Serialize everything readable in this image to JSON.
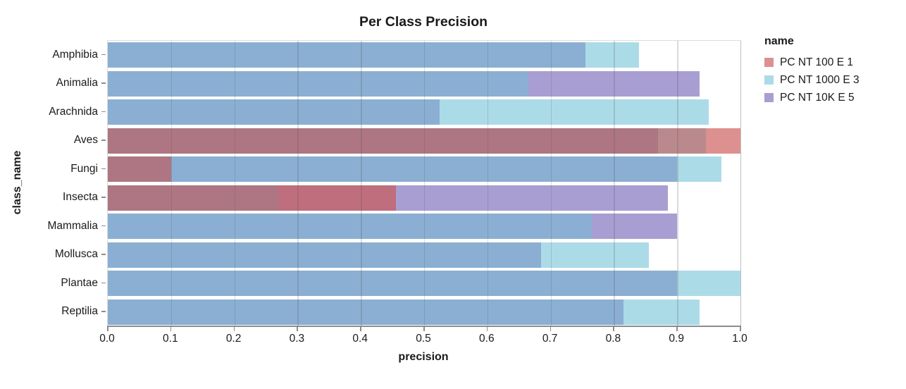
{
  "legend": {
    "title": "name"
  },
  "chart_data": {
    "type": "bar",
    "orientation": "horizontal",
    "title": "Per Class Precision",
    "xlabel": "precision",
    "ylabel": "class_name",
    "xlim": [
      0.0,
      1.0
    ],
    "x_ticks": [
      "0.0",
      "0.1",
      "0.2",
      "0.3",
      "0.4",
      "0.5",
      "0.6",
      "0.7",
      "0.8",
      "0.9",
      "1.0"
    ],
    "grid": true,
    "legend_position": "right",
    "render_style": "layered-transparent-bars",
    "categories": [
      "Amphibia",
      "Animalia",
      "Arachnida",
      "Aves",
      "Fungi",
      "Insecta",
      "Mammalia",
      "Mollusca",
      "Plantae",
      "Reptilia"
    ],
    "series": [
      {
        "id": "s100",
        "name": "PC NT 100 E 1",
        "color": "#DD9090",
        "values": [
          0.0,
          0.0,
          0.0,
          1.0,
          0.1,
          0.455,
          0.0,
          0.0,
          0.0,
          0.0
        ]
      },
      {
        "id": "s1000",
        "name": "PC NT 1000 E 3",
        "color": "#ACDBE8",
        "values": [
          0.84,
          0.665,
          0.95,
          0.945,
          0.97,
          0.27,
          0.765,
          0.855,
          1.0,
          0.935
        ]
      },
      {
        "id": "s10k",
        "name": "PC NT 10K E 5",
        "color": "#A89ED2",
        "values": [
          0.755,
          0.935,
          0.525,
          0.87,
          0.9,
          0.885,
          0.9,
          0.685,
          0.9,
          0.815
        ]
      }
    ],
    "overlap_blend_colors": {
      "s100": "#DD9090",
      "s1000": "#ACDBE8",
      "s10k": "#A89ED2",
      "s100+s1000": "#BA898E",
      "s100+s10k": "#BF6E7D",
      "s1000+s10k": "#8BAFD3",
      "s100+s1000+s10k": "#AD7682"
    }
  }
}
